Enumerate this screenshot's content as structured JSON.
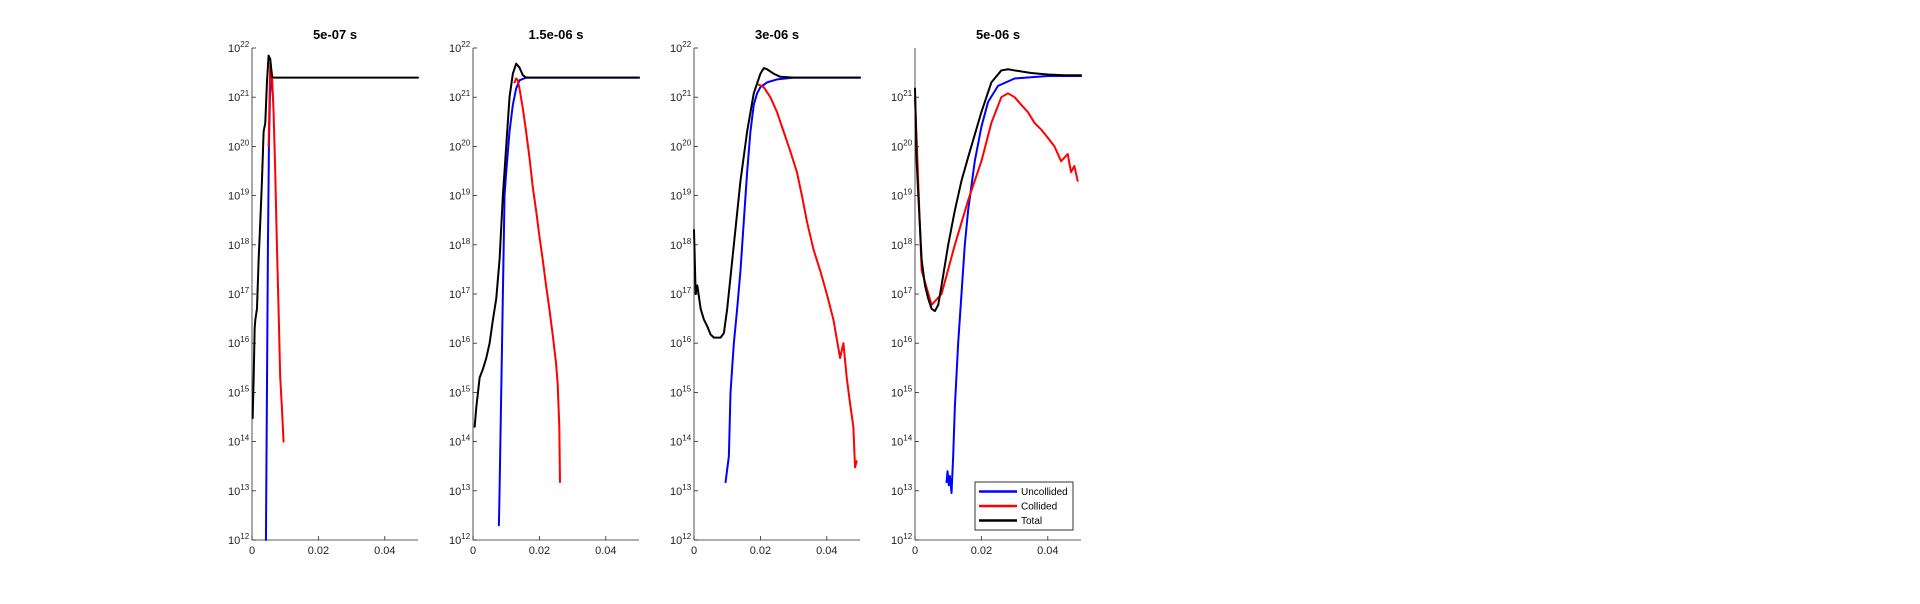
{
  "figure": {
    "legend": {
      "position": "bottom-right of last panel",
      "entries": [
        {
          "label": "Uncollided",
          "color": "#0000ff"
        },
        {
          "label": "Collided",
          "color": "#ff0000"
        },
        {
          "label": "Total",
          "color": "#000000"
        }
      ]
    }
  },
  "chart_data": [
    {
      "type": "line",
      "title": "5e-07 s",
      "xlabel": "",
      "ylabel": "",
      "xlim": [
        0,
        0.05
      ],
      "ylim": [
        1000000000000.0,
        1e+22
      ],
      "yscale": "log",
      "xticks": [
        0,
        0.02,
        0.04
      ],
      "xtick_labels": [
        "0",
        "0.02",
        "0.04"
      ],
      "ytick_exponents": [
        12,
        13,
        14,
        15,
        16,
        17,
        18,
        19,
        20,
        21,
        22
      ],
      "ytick_base": "10",
      "grid": false,
      "series": [
        {
          "name": "Uncollided",
          "color": "#0000ff",
          "x": [
            0.0042,
            0.0045,
            0.0048,
            0.0051,
            0.0054,
            0.0058
          ],
          "y": [
            1000000000000.0,
            1000000000000000.0,
            1e+18,
            1e+20,
            1e+21,
            2.5e+21
          ]
        },
        {
          "name": "Collided",
          "color": "#ff0000",
          "x": [
            0.005,
            0.0055,
            0.006,
            0.0065,
            0.007,
            0.0075,
            0.008,
            0.0085,
            0.009,
            0.0095
          ],
          "y": [
            1e+20,
            5e+21,
            3e+21,
            5e+20,
            3e+19,
            1e+18,
            5e+16,
            2000000000000000.0,
            500000000000000.0,
            100000000000000.0
          ]
        },
        {
          "name": "Total",
          "color": "#000000",
          "x": [
            0.0002,
            0.0005,
            0.0008,
            0.001,
            0.0015,
            0.002,
            0.0025,
            0.003,
            0.0035,
            0.004,
            0.0045,
            0.005,
            0.0055,
            0.006,
            0.0065,
            0.007,
            0.008,
            0.01,
            0.02,
            0.03,
            0.04,
            0.05
          ],
          "y": [
            300000000000000.0,
            2000000000000000.0,
            2e+16,
            3e+16,
            5e+16,
            5e+17,
            3e+18,
            2e+19,
            2e+20,
            3e+20,
            2e+21,
            7e+21,
            6e+21,
            2.6e+21,
            2.5e+21,
            2.5e+21,
            2.5e+21,
            2.5e+21,
            2.5e+21,
            2.5e+21,
            2.5e+21,
            2.5e+21
          ]
        }
      ]
    },
    {
      "type": "line",
      "title": "1.5e-06 s",
      "xlabel": "",
      "ylabel": "",
      "xlim": [
        0,
        0.05
      ],
      "ylim": [
        1000000000000.0,
        1e+22
      ],
      "yscale": "log",
      "xticks": [
        0,
        0.02,
        0.04
      ],
      "xtick_labels": [
        "0",
        "0.02",
        "0.04"
      ],
      "ytick_exponents": [
        12,
        13,
        14,
        15,
        16,
        17,
        18,
        19,
        20,
        21,
        22
      ],
      "ytick_base": "10",
      "grid": false,
      "series": [
        {
          "name": "Uncollided",
          "color": "#0000ff",
          "x": [
            0.0078,
            0.008,
            0.0085,
            0.009,
            0.0095,
            0.01,
            0.011,
            0.012,
            0.013,
            0.014,
            0.016,
            0.02,
            0.03,
            0.04,
            0.05
          ],
          "y": [
            2000000000000.0,
            10000000000000.0,
            1000000000000000.0,
            1e+17,
            1e+19,
            3e+19,
            2e+20,
            7e+20,
            1.5e+21,
            2.2e+21,
            2.5e+21,
            2.5e+21,
            2.5e+21,
            2.5e+21,
            2.5e+21
          ]
        },
        {
          "name": "Collided",
          "color": "#ff0000",
          "x": [
            0.0125,
            0.013,
            0.0135,
            0.014,
            0.015,
            0.016,
            0.017,
            0.018,
            0.019,
            0.02,
            0.021,
            0.022,
            0.023,
            0.024,
            0.025,
            0.0255,
            0.026,
            0.0262
          ],
          "y": [
            2e+21,
            2.4e+21,
            2.2e+21,
            1.5e+21,
            6e+20,
            2e+20,
            6e+19,
            1.5e+19,
            5e+18,
            1.5e+18,
            5e+17,
            1.5e+17,
            5e+16,
            1.5e+16,
            4000000000000000.0,
            1500000000000000.0,
            200000000000000.0,
            15000000000000.0
          ]
        },
        {
          "name": "Total",
          "color": "#000000",
          "x": [
            0.0005,
            0.001,
            0.0015,
            0.002,
            0.003,
            0.004,
            0.005,
            0.006,
            0.007,
            0.008,
            0.009,
            0.01,
            0.011,
            0.012,
            0.013,
            0.014,
            0.015,
            0.016,
            0.018,
            0.02,
            0.03,
            0.04,
            0.05
          ],
          "y": [
            200000000000000.0,
            500000000000000.0,
            1000000000000000.0,
            2000000000000000.0,
            3000000000000000.0,
            5000000000000000.0,
            1e+16,
            3e+16,
            8e+16,
            5e+17,
            1e+19,
            1e+20,
            1e+21,
            3e+21,
            4.8e+21,
            4e+21,
            2.8e+21,
            2.5e+21,
            2.5e+21,
            2.5e+21,
            2.5e+21,
            2.5e+21,
            2.5e+21
          ]
        }
      ]
    },
    {
      "type": "line",
      "title": "3e-06 s",
      "xlabel": "",
      "ylabel": "",
      "xlim": [
        0,
        0.05
      ],
      "ylim": [
        1000000000000.0,
        1e+22
      ],
      "yscale": "log",
      "xticks": [
        0,
        0.02,
        0.04
      ],
      "xtick_labels": [
        "0",
        "0.02",
        "0.04"
      ],
      "ytick_exponents": [
        12,
        13,
        14,
        15,
        16,
        17,
        18,
        19,
        20,
        21,
        22
      ],
      "ytick_base": "10",
      "grid": false,
      "series": [
        {
          "name": "Uncollided",
          "color": "#0000ff",
          "x": [
            0.0095,
            0.0105,
            0.011,
            0.012,
            0.013,
            0.014,
            0.015,
            0.016,
            0.017,
            0.018,
            0.019,
            0.02,
            0.022,
            0.025,
            0.03,
            0.04,
            0.05
          ],
          "y": [
            15000000000000.0,
            50000000000000.0,
            1000000000000000.0,
            1e+16,
            5e+16,
            3e+17,
            3e+18,
            3e+19,
            2e+20,
            7e+20,
            1.2e+21,
            1.6e+21,
            2e+21,
            2.3e+21,
            2.5e+21,
            2.5e+21,
            2.5e+21
          ]
        },
        {
          "name": "Collided",
          "color": "#ff0000",
          "x": [
            0.0195,
            0.021,
            0.023,
            0.025,
            0.027,
            0.029,
            0.031,
            0.0325,
            0.034,
            0.036,
            0.038,
            0.04,
            0.042,
            0.044,
            0.045,
            0.046,
            0.047,
            0.048,
            0.0485,
            0.049
          ],
          "y": [
            1.8e+21,
            1.6e+21,
            1e+21,
            5e+20,
            2e+20,
            8e+19,
            3e+19,
            1e+19,
            3e+18,
            8e+17,
            3e+17,
            1e+17,
            3e+16,
            5000000000000000.0,
            1e+16,
            2000000000000000.0,
            600000000000000.0,
            200000000000000.0,
            30000000000000.0,
            40000000000000.0
          ]
        },
        {
          "name": "Total",
          "color": "#000000",
          "x": [
            0.0,
            0.0005,
            0.001,
            0.002,
            0.003,
            0.004,
            0.005,
            0.006,
            0.007,
            0.008,
            0.009,
            0.01,
            0.012,
            0.014,
            0.016,
            0.018,
            0.02,
            0.021,
            0.022,
            0.024,
            0.026,
            0.03,
            0.04,
            0.05
          ],
          "y": [
            2e+18,
            1e+17,
            1.5e+17,
            5e+16,
            3e+16,
            2.2e+16,
            1.5e+16,
            1.3e+16,
            1.3e+16,
            1.3e+16,
            1.6e+16,
            5e+16,
            1e+18,
            2e+19,
            2e+20,
            1.2e+21,
            3e+21,
            3.9e+21,
            3.7e+21,
            3e+21,
            2.6e+21,
            2.5e+21,
            2.5e+21,
            2.5e+21
          ]
        }
      ]
    },
    {
      "type": "line",
      "title": "5e-06 s",
      "xlabel": "",
      "ylabel": "",
      "xlim": [
        0,
        0.05
      ],
      "ylim": [
        1000000000000.0,
        1e+22
      ],
      "yscale": "log",
      "xticks": [
        0,
        0.02,
        0.04
      ],
      "xtick_labels": [
        "0",
        "0.02",
        "0.04"
      ],
      "ytick_exponents": [
        12,
        13,
        14,
        15,
        16,
        17,
        18,
        19,
        20,
        21
      ],
      "ytick_base": "10",
      "grid": false,
      "series": [
        {
          "name": "Uncollided",
          "color": "#0000ff",
          "x": [
            0.0095,
            0.0098,
            0.0102,
            0.0105,
            0.011,
            0.0115,
            0.012,
            0.013,
            0.014,
            0.015,
            0.016,
            0.018,
            0.02,
            0.022,
            0.025,
            0.03,
            0.04,
            0.05
          ],
          "y": [
            15000000000000.0,
            25000000000000.0,
            13000000000000.0,
            20000000000000.0,
            9000000000000.0,
            50000000000000.0,
            500000000000000.0,
            1e+16,
            1e+17,
            1e+18,
            5e+18,
            5e+19,
            2.5e+20,
            8e+20,
            1.7e+21,
            2.4e+21,
            2.7e+21,
            2.7e+21
          ]
        },
        {
          "name": "Collided",
          "color": "#ff0000",
          "x": [
            0.0,
            0.002,
            0.005,
            0.008,
            0.012,
            0.016,
            0.02,
            0.023,
            0.026,
            0.028,
            0.03,
            0.032,
            0.034,
            0.036,
            0.038,
            0.04,
            0.042,
            0.044,
            0.046,
            0.047,
            0.048,
            0.049
          ],
          "y": [
            1e+21,
            3e+17,
            6e+16,
            1e+17,
            1e+18,
            8e+18,
            5e+19,
            3e+20,
            1e+21,
            1.2e+21,
            1e+21,
            7e+20,
            5e+20,
            3e+20,
            2.2e+20,
            1.5e+20,
            1e+20,
            5e+19,
            7e+19,
            3e+19,
            4e+19,
            2e+19
          ]
        },
        {
          "name": "Total",
          "color": "#000000",
          "x": [
            0.0,
            0.0005,
            0.001,
            0.002,
            0.003,
            0.004,
            0.005,
            0.006,
            0.007,
            0.008,
            0.01,
            0.012,
            0.014,
            0.016,
            0.02,
            0.023,
            0.026,
            0.028,
            0.03,
            0.035,
            0.04,
            0.045,
            0.05
          ],
          "y": [
            1.5e+21,
            5e+19,
            1e+19,
            5e+17,
            1.5e+17,
            8e+16,
            5e+16,
            4.5e+16,
            6e+16,
            1.5e+17,
            1e+18,
            5e+18,
            2e+19,
            6e+19,
            5e+20,
            2e+21,
            3.5e+21,
            3.7e+21,
            3.5e+21,
            3.1e+21,
            2.9e+21,
            2.8e+21,
            2.8e+21
          ]
        }
      ]
    }
  ]
}
